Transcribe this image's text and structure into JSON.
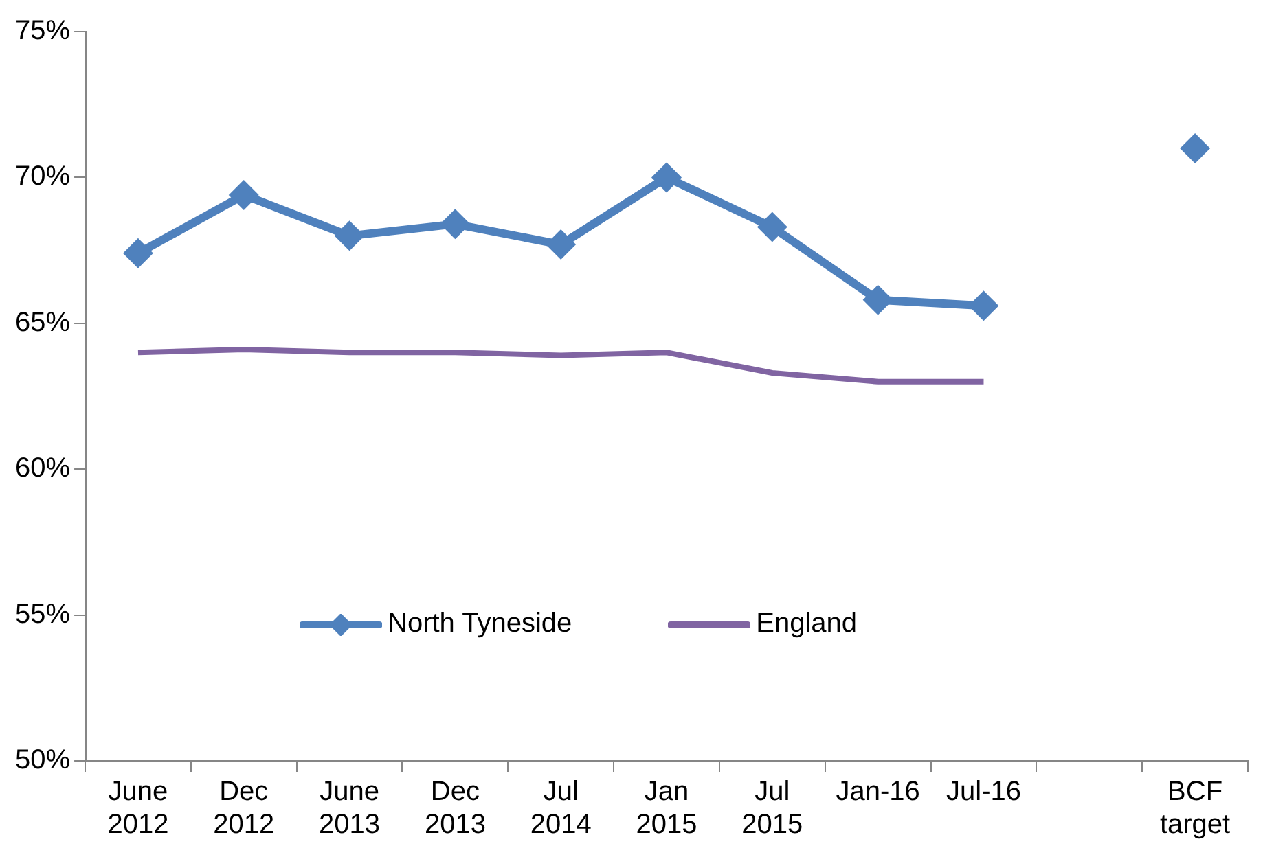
{
  "chart_data": {
    "type": "line",
    "categories": [
      "June 2012",
      "Dec 2012",
      "June 2013",
      "Dec 2013",
      "Jul 2014",
      "Jan 2015",
      "Jul 2015",
      "Jan-16",
      "Jul-16",
      null,
      "BCF target"
    ],
    "series": [
      {
        "name": "North Tyneside",
        "color": "#4f81bd",
        "marker": "diamond",
        "values": [
          67.4,
          69.4,
          68.0,
          68.4,
          67.7,
          70.0,
          68.3,
          65.8,
          65.6,
          null,
          71.0
        ]
      },
      {
        "name": "England",
        "color": "#8064a2",
        "marker": "none",
        "values": [
          64.0,
          64.1,
          64.0,
          64.0,
          63.9,
          64.0,
          63.3,
          63.0,
          63.0,
          null,
          null
        ]
      }
    ],
    "ylim": [
      50,
      75
    ],
    "yticks": [
      {
        "value": 50,
        "label": "50%"
      },
      {
        "value": 55,
        "label": "55%"
      },
      {
        "value": 60,
        "label": "60%"
      },
      {
        "value": 65,
        "label": "65%"
      },
      {
        "value": 70,
        "label": "70%"
      },
      {
        "value": 75,
        "label": "75%"
      }
    ],
    "grid": false,
    "legend": "bottom"
  }
}
